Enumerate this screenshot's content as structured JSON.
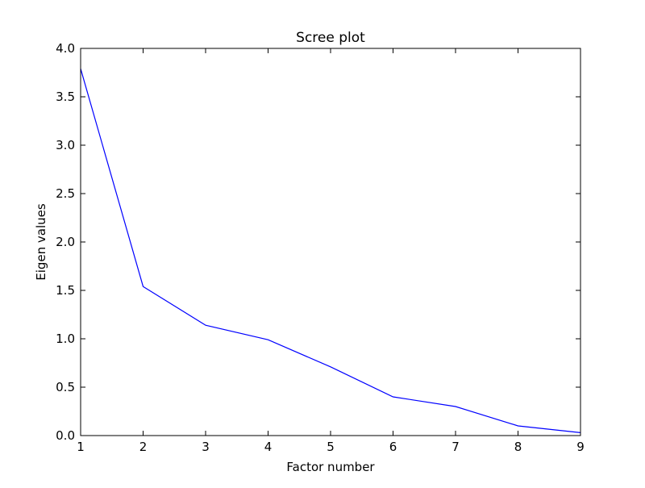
{
  "chart_data": {
    "type": "line",
    "title": "Scree plot",
    "xlabel": "Factor number",
    "ylabel": "Eigen values",
    "x": [
      1,
      2,
      3,
      4,
      5,
      6,
      7,
      8,
      9
    ],
    "series": [
      {
        "values": [
          3.79,
          1.54,
          1.14,
          0.99,
          0.71,
          0.4,
          0.3,
          0.1,
          0.03
        ],
        "color": "#0000ff"
      }
    ],
    "xlim": [
      1,
      9
    ],
    "ylim": [
      0.0,
      4.0
    ],
    "xticks": [
      1,
      2,
      3,
      4,
      5,
      6,
      7,
      8,
      9
    ],
    "yticks": [
      "0.0",
      "0.5",
      "1.0",
      "1.5",
      "2.0",
      "2.5",
      "3.0",
      "3.5",
      "4.0"
    ],
    "grid": false,
    "legend": "none"
  }
}
